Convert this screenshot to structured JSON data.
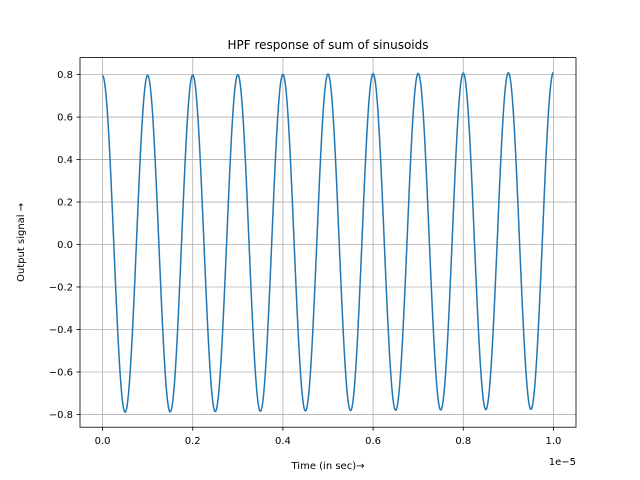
{
  "chart_data": {
    "type": "line",
    "title": "HPF response of sum of sinusoids",
    "xlabel": "Time (in sec)→",
    "ylabel": "Output signal →",
    "x_offset_text": "1e−5",
    "xlim": [
      -5e-07,
      1.05e-05
    ],
    "ylim": [
      -0.86,
      0.88
    ],
    "grid": true,
    "xticks": [
      0,
      2e-06,
      4e-06,
      6e-06,
      8e-06,
      1e-05
    ],
    "xtick_labels": [
      "0.0",
      "0.2",
      "0.4",
      "0.6",
      "0.8",
      "1.0"
    ],
    "yticks": [
      -0.8,
      -0.6,
      -0.4,
      -0.2,
      0.0,
      0.2,
      0.4,
      0.6,
      0.8
    ],
    "ytick_labels": [
      "−0.8",
      "−0.6",
      "−0.4",
      "−0.2",
      "0.0",
      "0.2",
      "0.4",
      "0.6",
      "0.8"
    ],
    "series": [
      {
        "color": "#1f77b4",
        "x_range": [
          0,
          1e-05
        ],
        "frequency_hz": 1000000,
        "waveform": "cosine",
        "amplitude_start": 0.795,
        "amplitude_end": 0.81,
        "trough_start": -0.79,
        "trough_end": -0.775
      }
    ]
  }
}
